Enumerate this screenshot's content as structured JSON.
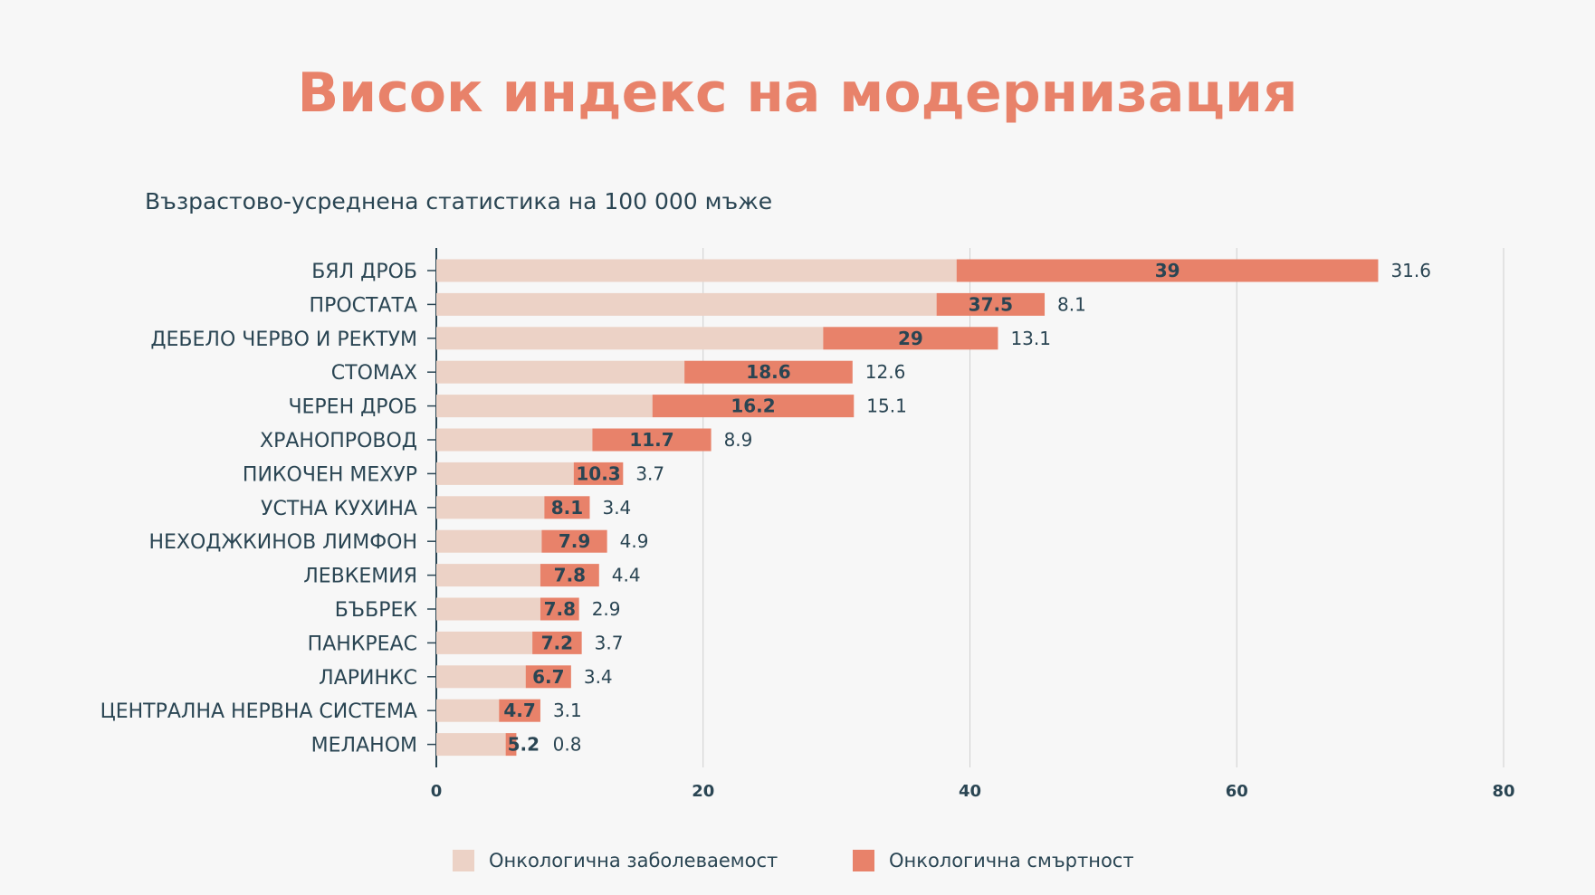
{
  "title": "Висок индекс на модернизация",
  "subtitle": "Възрастово-усреднена статистика на 100 000 мъже",
  "colors": {
    "incidence": "#ecd2c6",
    "mortality": "#e8826a",
    "text": "#2a4553",
    "grid": "#cfcfcf",
    "axis": "#2a4553"
  },
  "chart_data": {
    "type": "bar",
    "orientation": "horizontal",
    "stacked": true,
    "categories": [
      "БЯЛ ДРОБ",
      "ПРОСТАТА",
      "ДЕБЕЛО ЧЕРВО И РЕКТУМ",
      "СТОМАХ",
      "ЧЕРЕН ДРОБ",
      "ХРАНОПРОВОД",
      "ПИКОЧЕН МЕХУР",
      "УСТНА КУХИНА",
      "НЕХОДЖКИНОВ ЛИМФОН",
      "ЛЕВКЕМИЯ",
      "БЪБРЕК",
      "ПАНКРЕАС",
      "ЛАРИНКС",
      "ЦЕНТРАЛНА НЕРВНА СИСТЕМА",
      "МЕЛАНОМ"
    ],
    "series": [
      {
        "name": "Онкологична заболеваемост",
        "values": [
          39,
          37.5,
          29,
          18.6,
          16.2,
          11.7,
          10.3,
          8.1,
          7.9,
          7.8,
          7.8,
          7.2,
          6.7,
          4.7,
          5.2
        ],
        "labels": [
          "39",
          "37.5",
          "29",
          "18.6",
          "16.2",
          "11.7",
          "10.3",
          "8.1",
          "7.9",
          "7.8",
          "7.8",
          "7.2",
          "6.7",
          "4.7",
          "5.2"
        ]
      },
      {
        "name": "Онкологична смъртност",
        "values": [
          31.6,
          8.1,
          13.1,
          12.6,
          15.1,
          8.9,
          3.7,
          3.4,
          4.9,
          4.4,
          2.9,
          3.7,
          3.4,
          3.1,
          0.8
        ],
        "labels": [
          "31.6",
          "8.1",
          "13.1",
          "12.6",
          "15.1",
          "8.9",
          "3.7",
          "3.4",
          "4.9",
          "4.4",
          "2.9",
          "3.7",
          "3.4",
          "3.1",
          "0.8"
        ]
      }
    ],
    "xlim": [
      0,
      80
    ],
    "xticks": [
      "0",
      "20",
      "40",
      "60",
      "80"
    ],
    "grid": true,
    "legend_position": "bottom"
  }
}
